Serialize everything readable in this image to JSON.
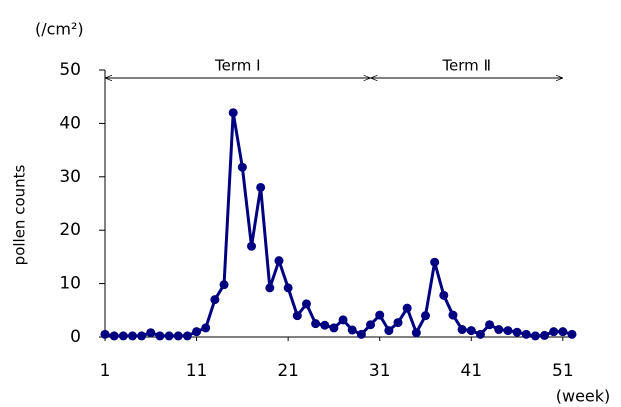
{
  "chart_data": {
    "type": "line",
    "y_unit": "(/cm²)",
    "x_unit": "(week)",
    "ylabel": "pollen counts",
    "x": [
      1,
      2,
      3,
      4,
      5,
      6,
      7,
      8,
      9,
      10,
      11,
      12,
      13,
      14,
      15,
      16,
      17,
      18,
      19,
      20,
      21,
      22,
      23,
      24,
      25,
      26,
      27,
      28,
      29,
      30,
      31,
      32,
      33,
      34,
      35,
      36,
      37,
      38,
      39,
      40,
      41,
      42,
      43,
      44,
      45,
      46,
      47,
      48,
      49,
      50,
      51,
      52
    ],
    "series": [
      {
        "color": "#000080",
        "values": [
          0.5,
          0.2,
          0.2,
          0.2,
          0.2,
          0.8,
          0.2,
          0.2,
          0.2,
          0.2,
          1.0,
          1.7,
          7.0,
          9.8,
          42,
          31.8,
          17,
          28,
          9.2,
          14.3,
          9.2,
          4.0,
          6.2,
          2.5,
          2.2,
          1.7,
          3.2,
          1.3,
          0.5,
          2.3,
          4.1,
          1.2,
          2.7,
          5.4,
          0.8,
          4.0,
          14,
          7.8,
          4.1,
          1.4,
          1.2,
          0.5,
          2.3,
          1.4,
          1.2,
          0.9,
          0.5,
          0.2,
          0.3,
          1.0,
          1.0,
          0.5
        ]
      }
    ],
    "xlim": [
      1,
      52
    ],
    "xticks": [
      1,
      11,
      21,
      31,
      41,
      51
    ],
    "ylim": [
      0,
      50
    ],
    "yticks": [
      0,
      10,
      20,
      30,
      40,
      50
    ],
    "grid": false,
    "annotations": [
      {
        "text": "Term Ⅰ",
        "start": 1,
        "end": 30
      },
      {
        "text": "Term Ⅱ",
        "start": 30,
        "end": 51
      }
    ]
  }
}
